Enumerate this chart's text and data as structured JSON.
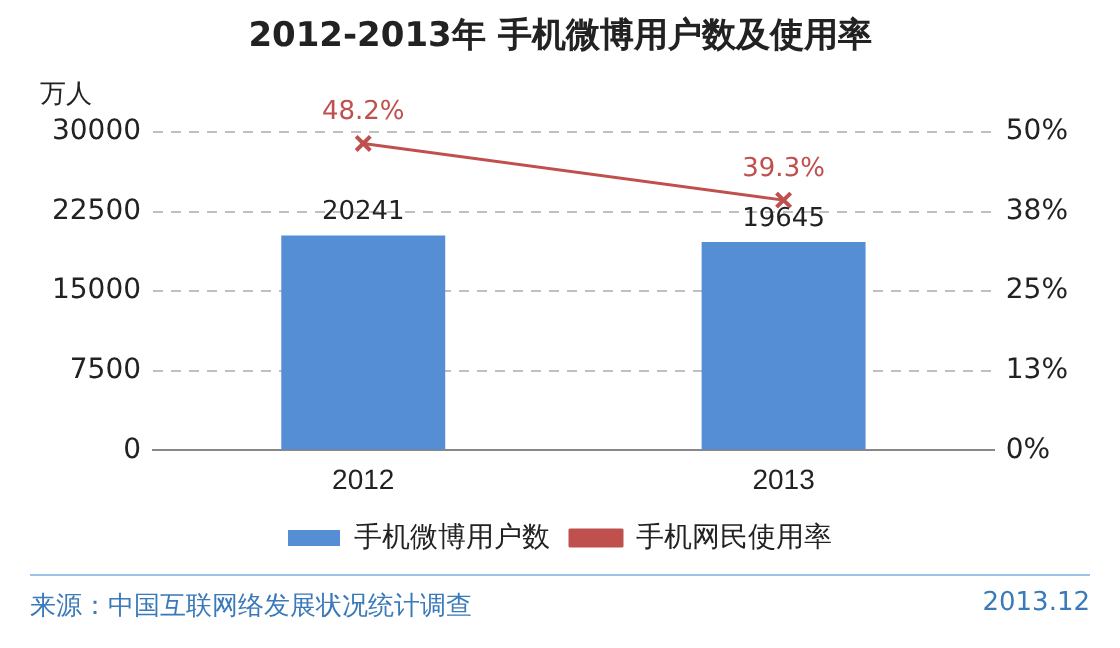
{
  "chart_data": {
    "type": "bar",
    "title": "2012-2013年 手机微博用户数及使用率",
    "ylabel": "万人",
    "categories": [
      "2012",
      "2013"
    ],
    "series": [
      {
        "name": "手机微博用户数",
        "color": "#558ed5",
        "values": [
          20241,
          19645
        ],
        "value_labels": [
          "20241",
          "19645"
        ]
      },
      {
        "name": "手机网民使用率",
        "type": "line",
        "axis": "y2",
        "color": "#c0504d",
        "marker": "cross",
        "values": [
          48.2,
          39.3
        ],
        "value_labels": [
          "48.2%",
          "39.3%"
        ]
      }
    ],
    "ylim": [
      0,
      30000
    ],
    "yticks": [
      0,
      7500,
      15000,
      22500,
      30000
    ],
    "y2lim": [
      0,
      50
    ],
    "y2ticks": [
      {
        "value": 0,
        "label": "0%"
      },
      {
        "value": 12.5,
        "label": "13%"
      },
      {
        "value": 25,
        "label": "25%"
      },
      {
        "value": 37.5,
        "label": "38%"
      },
      {
        "value": 50,
        "label": "50%"
      }
    ],
    "grid": "y",
    "legend": "bottom",
    "annotations": [
      "来源：中国互联网络发展状况统计调查",
      "2013.12"
    ]
  }
}
